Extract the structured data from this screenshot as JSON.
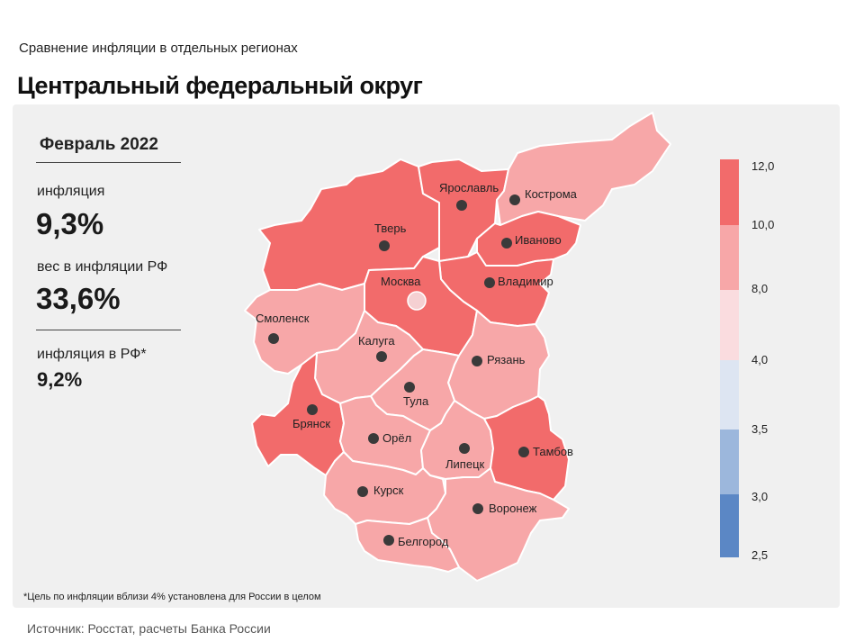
{
  "header": {
    "subtitle": "Сравнение  инфляции  в отдельных  регионах",
    "title": "Центральный федеральный округ"
  },
  "stats": {
    "period": "Февраль 2022",
    "inflation_label": "инфляция",
    "inflation_value": "9,3%",
    "weight_label": "вес в инфляции  РФ",
    "weight_value": "33,6%",
    "rf_label": "инфляция  в РФ*",
    "rf_value": "9,2%"
  },
  "footnote": "*Цель по инфляции вблизи 4% установлена для России в целом",
  "source": "Источник: Росстат, расчеты Банка России",
  "legend": {
    "ticks": [
      "12,0",
      "10,0",
      "8,0",
      "4,0",
      "3,5",
      "3,0",
      "2,5"
    ],
    "colors": [
      "#f26b6b",
      "#f7a7a8",
      "#fadcdf",
      "#dde5f2",
      "#9cb7dc",
      "#5b87c5"
    ]
  },
  "regions": [
    {
      "name": "Тверь",
      "color": "#f26b6b"
    },
    {
      "name": "Ярославль",
      "color": "#f26b6b"
    },
    {
      "name": "Кострома",
      "color": "#f7a7a8"
    },
    {
      "name": "Иваново",
      "color": "#f26b6b"
    },
    {
      "name": "Владимир",
      "color": "#f26b6b"
    },
    {
      "name": "Москва",
      "color": "#f26b6b"
    },
    {
      "name": "Смоленск",
      "color": "#f7a7a8"
    },
    {
      "name": "Калуга",
      "color": "#f7a7a8"
    },
    {
      "name": "Рязань",
      "color": "#f7a7a8"
    },
    {
      "name": "Тула",
      "color": "#f7a7a8"
    },
    {
      "name": "Брянск",
      "color": "#f26b6b"
    },
    {
      "name": "Орёл",
      "color": "#f7a7a8"
    },
    {
      "name": "Липецк",
      "color": "#f7a7a8"
    },
    {
      "name": "Тамбов",
      "color": "#f26b6b"
    },
    {
      "name": "Курск",
      "color": "#f7a7a8"
    },
    {
      "name": "Воронеж",
      "color": "#f7a7a8"
    },
    {
      "name": "Белгород",
      "color": "#f7a7a8"
    }
  ]
}
